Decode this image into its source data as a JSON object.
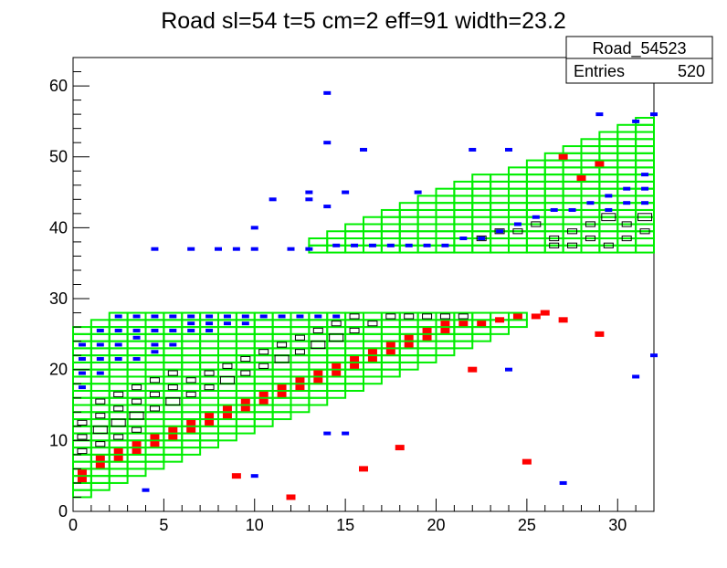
{
  "chart_data": {
    "type": "heatmap",
    "title": "Road sl=54 t=5 cm=2 eff=91 width=23.2",
    "xlabel": "",
    "ylabel": "",
    "xlim": [
      0,
      32
    ],
    "ylim": [
      0,
      64
    ],
    "x_ticks": [
      "0",
      "5",
      "10",
      "15",
      "20",
      "25",
      "30"
    ],
    "y_ticks": [
      "0",
      "10",
      "20",
      "30",
      "40",
      "50",
      "60"
    ],
    "grid": false,
    "stats_box": {
      "name": "Road_54523",
      "entries_label": "Entries",
      "entries_value": "520"
    },
    "colors": {
      "road_outline": "#00ee00",
      "hit_blue": "#0000ff",
      "hit_red": "#ff0000",
      "hit_box": "#000000"
    },
    "road_lower": {
      "x": [
        0,
        25
      ],
      "y_bottom_at_x0": 2,
      "y_top_at_x0": 26,
      "y_top_max": 28,
      "slope": 1
    },
    "road_upper": {
      "x": [
        13,
        32
      ],
      "y_bottom": 36.5,
      "y_top_at_x13": 37.5,
      "slope": 0.9
    },
    "blue_hits": [
      [
        0,
        23
      ],
      [
        0,
        21
      ],
      [
        0,
        19
      ],
      [
        0,
        17
      ],
      [
        1,
        25
      ],
      [
        1,
        23
      ],
      [
        1,
        21
      ],
      [
        1,
        19
      ],
      [
        2,
        27
      ],
      [
        2,
        25
      ],
      [
        2,
        23
      ],
      [
        2,
        21
      ],
      [
        3,
        27
      ],
      [
        3,
        25
      ],
      [
        3,
        24
      ],
      [
        3,
        21
      ],
      [
        4,
        27
      ],
      [
        4,
        25
      ],
      [
        4,
        23
      ],
      [
        4,
        22
      ],
      [
        5,
        27
      ],
      [
        5,
        25
      ],
      [
        5,
        23
      ],
      [
        6,
        27
      ],
      [
        6,
        26
      ],
      [
        6,
        25
      ],
      [
        7,
        27
      ],
      [
        7,
        26
      ],
      [
        7,
        25
      ],
      [
        8,
        27
      ],
      [
        8,
        26
      ],
      [
        9,
        27
      ],
      [
        9,
        26
      ],
      [
        10,
        27
      ],
      [
        11,
        27
      ],
      [
        12,
        27
      ],
      [
        13,
        27
      ],
      [
        14,
        27
      ],
      [
        4,
        36.5
      ],
      [
        6,
        36.5
      ],
      [
        7.5,
        36.5
      ],
      [
        8.5,
        36.5
      ],
      [
        9.5,
        36.5
      ],
      [
        11.5,
        36.5
      ],
      [
        12.5,
        36.5
      ],
      [
        14,
        37
      ],
      [
        15,
        37
      ],
      [
        16,
        37
      ],
      [
        17,
        37
      ],
      [
        18,
        37
      ],
      [
        19,
        37
      ],
      [
        20,
        37
      ],
      [
        21,
        38
      ],
      [
        22,
        38
      ],
      [
        23,
        39
      ],
      [
        24,
        40
      ],
      [
        25,
        41
      ],
      [
        26,
        42
      ],
      [
        27,
        42
      ],
      [
        28,
        43
      ],
      [
        29,
        44
      ],
      [
        30,
        45
      ],
      [
        31,
        47
      ],
      [
        31,
        45
      ],
      [
        31,
        43
      ],
      [
        30,
        43
      ],
      [
        29,
        42
      ],
      [
        13.5,
        58.5
      ],
      [
        13.5,
        51.5
      ],
      [
        15.5,
        50.5
      ],
      [
        21.5,
        50.5
      ],
      [
        23.5,
        50.5
      ],
      [
        28.5,
        55.5
      ],
      [
        30.5,
        54.5
      ],
      [
        31.5,
        55.5
      ],
      [
        10.5,
        43.5
      ],
      [
        12.5,
        44.5
      ],
      [
        12.5,
        43.5
      ],
      [
        14.5,
        44.5
      ],
      [
        18.5,
        44.5
      ],
      [
        13.5,
        42.5
      ],
      [
        9.5,
        39.5
      ],
      [
        3.5,
        2.5
      ],
      [
        9.5,
        4.5
      ],
      [
        14.5,
        10.5
      ],
      [
        13.5,
        10.5
      ],
      [
        23.5,
        19.5
      ],
      [
        30.5,
        18.5
      ],
      [
        31.5,
        21.5
      ],
      [
        26.5,
        3.5
      ]
    ],
    "red_hits": [
      [
        0,
        4
      ],
      [
        0,
        5
      ],
      [
        1,
        6
      ],
      [
        1,
        7
      ],
      [
        2,
        7
      ],
      [
        2,
        8
      ],
      [
        3,
        8
      ],
      [
        3,
        9
      ],
      [
        4,
        9
      ],
      [
        4,
        10
      ],
      [
        5,
        10
      ],
      [
        5,
        11
      ],
      [
        6,
        11
      ],
      [
        6,
        12
      ],
      [
        7,
        12
      ],
      [
        7,
        13
      ],
      [
        8,
        13
      ],
      [
        8,
        14
      ],
      [
        9,
        14
      ],
      [
        9,
        15
      ],
      [
        10,
        15
      ],
      [
        10,
        16
      ],
      [
        11,
        16
      ],
      [
        11,
        17
      ],
      [
        12,
        17
      ],
      [
        12,
        18
      ],
      [
        13,
        18
      ],
      [
        13,
        19
      ],
      [
        14,
        19
      ],
      [
        14,
        20
      ],
      [
        15,
        20
      ],
      [
        15,
        21
      ],
      [
        16,
        21
      ],
      [
        16,
        22
      ],
      [
        17,
        22
      ],
      [
        17,
        23
      ],
      [
        18,
        23
      ],
      [
        18,
        24
      ],
      [
        19,
        24
      ],
      [
        19,
        25
      ],
      [
        20,
        25
      ],
      [
        20,
        26
      ],
      [
        21,
        26
      ],
      [
        22,
        26
      ],
      [
        23,
        26.5
      ],
      [
        24,
        27
      ],
      [
        25,
        27
      ],
      [
        25.5,
        27.5
      ],
      [
        26.5,
        26.5
      ],
      [
        28.5,
        24.5
      ],
      [
        11.5,
        1.5
      ],
      [
        8.5,
        4.5
      ],
      [
        15.5,
        5.5
      ],
      [
        17.5,
        8.5
      ],
      [
        21.5,
        19.5
      ],
      [
        24.5,
        6.5
      ],
      [
        28.5,
        48.5
      ],
      [
        27.5,
        46.5
      ],
      [
        26.5,
        49.5
      ]
    ],
    "box_hits": [
      [
        0,
        10,
        2
      ],
      [
        0,
        12,
        2
      ],
      [
        1,
        11,
        3
      ],
      [
        1,
        13,
        2
      ],
      [
        2,
        12,
        3
      ],
      [
        2,
        14,
        2
      ],
      [
        3,
        13,
        3
      ],
      [
        3,
        15,
        2
      ],
      [
        4,
        14,
        2
      ],
      [
        4,
        16,
        2
      ],
      [
        5,
        15,
        3
      ],
      [
        5,
        17,
        2
      ],
      [
        6,
        16,
        2
      ],
      [
        6,
        18,
        2
      ],
      [
        7,
        17,
        2
      ],
      [
        7,
        19,
        2
      ],
      [
        8,
        18,
        3
      ],
      [
        8,
        20,
        2
      ],
      [
        9,
        19,
        2
      ],
      [
        9,
        21,
        2
      ],
      [
        10,
        20,
        2
      ],
      [
        10,
        22,
        2
      ],
      [
        11,
        21,
        3
      ],
      [
        11,
        23,
        2
      ],
      [
        12,
        22,
        2
      ],
      [
        12,
        24,
        2
      ],
      [
        13,
        23,
        3
      ],
      [
        13,
        25,
        2
      ],
      [
        14,
        24,
        3
      ],
      [
        14,
        26,
        2
      ],
      [
        15,
        25,
        2
      ],
      [
        15,
        27,
        2
      ],
      [
        16,
        26,
        2
      ],
      [
        17,
        27,
        2
      ],
      [
        18,
        27,
        2
      ],
      [
        19,
        27,
        2
      ],
      [
        20,
        27,
        2
      ],
      [
        21,
        27,
        2
      ],
      [
        22,
        38,
        2
      ],
      [
        23,
        39,
        2
      ],
      [
        24,
        39,
        2
      ],
      [
        25,
        40,
        2
      ],
      [
        26,
        38,
        2
      ],
      [
        27,
        39,
        2
      ],
      [
        28,
        40,
        2
      ],
      [
        29,
        41,
        3
      ],
      [
        30,
        40,
        2
      ],
      [
        31,
        41,
        3
      ],
      [
        31,
        39,
        2
      ],
      [
        30,
        38,
        2
      ],
      [
        29,
        37,
        2
      ],
      [
        28,
        38,
        2
      ],
      [
        27,
        37,
        2
      ],
      [
        26,
        37,
        2
      ],
      [
        1,
        9,
        2
      ],
      [
        2,
        10,
        2
      ],
      [
        3,
        11,
        2
      ],
      [
        0,
        8,
        2
      ],
      [
        1,
        15,
        2
      ],
      [
        2,
        16,
        2
      ],
      [
        3,
        17,
        2
      ],
      [
        4,
        18,
        2
      ],
      [
        5,
        19,
        2
      ]
    ]
  }
}
